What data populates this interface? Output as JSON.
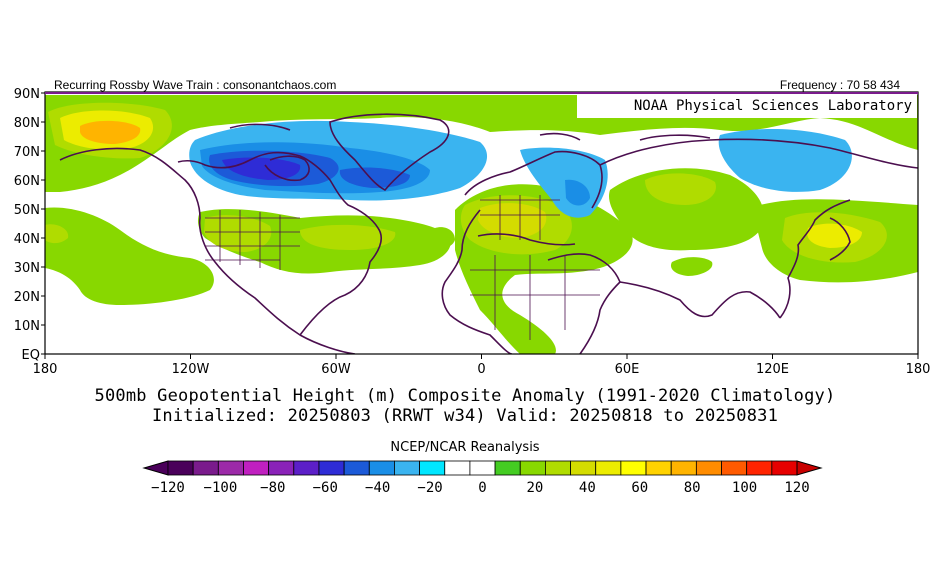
{
  "header": {
    "left": "Recurring Rossby Wave Train : consonantchaos.com",
    "right": "Frequency : 70 58 434"
  },
  "map": {
    "lab_label": "NOAA Physical Sciences Laboratory",
    "lat_labels": [
      "90N",
      "80N",
      "70N",
      "60N",
      "50N",
      "40N",
      "30N",
      "20N",
      "10N",
      "EQ"
    ],
    "lon_labels": [
      "180",
      "120W",
      "60W",
      "0",
      "60E",
      "120E",
      "180"
    ]
  },
  "caption": {
    "line1": "500mb Geopotential Height (m) Composite Anomaly (1991-2020 Climatology)",
    "line2": "Initialized: 20250803 (RRWT w34) Valid: 20250818 to 20250831"
  },
  "legend": {
    "title": "NCEP/NCAR Reanalysis",
    "ticks": [
      "-120",
      "-100",
      "-80",
      "-60",
      "-40",
      "-20",
      "0",
      "20",
      "40",
      "60",
      "80",
      "100",
      "120"
    ],
    "colors": [
      "#4a005a",
      "#7a1b8c",
      "#9c2aa8",
      "#c020c0",
      "#8a22b8",
      "#5c1fc8",
      "#2e2cd6",
      "#1c5ad8",
      "#1a8ee6",
      "#3ab4f0",
      "#00e6ff",
      "#ffffff",
      "#ffffff",
      "#44cc22",
      "#88d800",
      "#b0dc00",
      "#d4dc00",
      "#ecec00",
      "#ffff00",
      "#ffd200",
      "#ffb400",
      "#ff8c00",
      "#ff5a00",
      "#ff2400",
      "#e60000"
    ]
  }
}
